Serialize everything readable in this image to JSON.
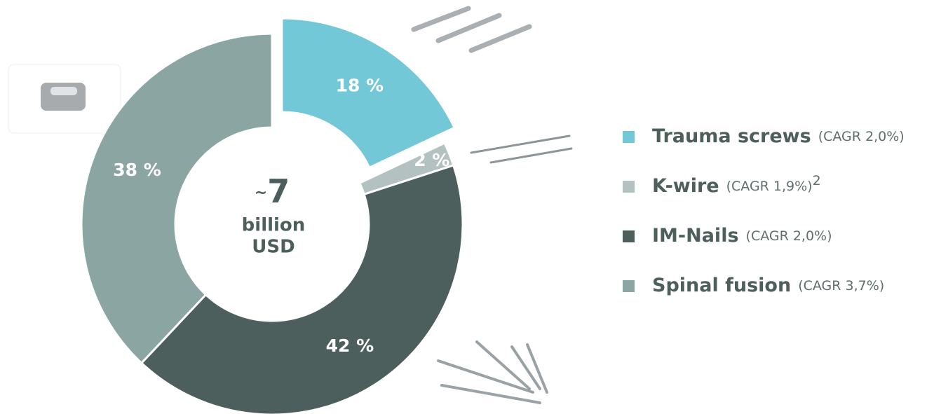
{
  "chart_data": {
    "type": "donut",
    "categories": [
      "Trauma screws",
      "K-wire",
      "IM-Nails",
      "Spinal fusion"
    ],
    "notes": [
      "(CAGR 2,0%)",
      "(CAGR 1,9%)",
      "(CAGR 2,0%)",
      "(CAGR 3,7%)"
    ],
    "note_superscripts": [
      null,
      "2",
      null,
      null
    ],
    "values": [
      18,
      2,
      42,
      38
    ],
    "value_labels": [
      "18 %",
      "2 %",
      "42 %",
      "38 %"
    ],
    "colors": [
      "#72c8d6",
      "#b3c2c1",
      "#4d5f5c",
      "#8ba5a3"
    ],
    "exploded": [
      true,
      false,
      false,
      false
    ],
    "center": {
      "prefix": "~",
      "value": 7,
      "unit_lines": [
        "billion",
        "USD"
      ]
    },
    "legend": "right"
  }
}
